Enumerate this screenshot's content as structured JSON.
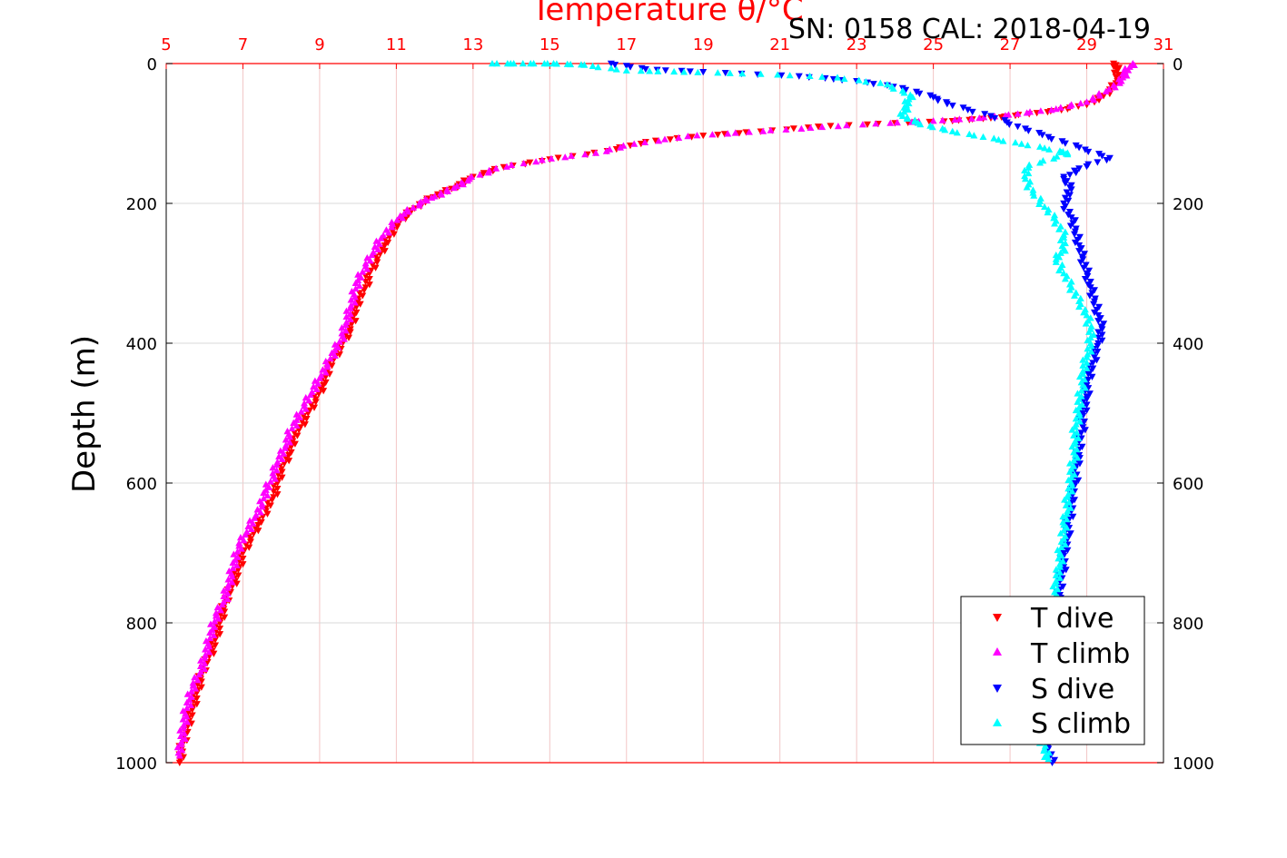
{
  "figure": {
    "title": "Temperature θ/°C",
    "annotation": "SN: 0158  CAL: 2018-04-19"
  },
  "colors": {
    "t_dive": "#ff0000",
    "t_climb": "#ff00ff",
    "s_dive": "#0000ff",
    "s_climb": "#00ffff",
    "top_axis": "#ff0000",
    "grid": "#d9d9d9",
    "top_grid": "#f2c6c6"
  },
  "chart_data": {
    "type": "scatter",
    "title": "Temperature θ/°C",
    "xlabel": "",
    "ylabel": "Depth (m)",
    "x_axis_top": {
      "range": [
        5,
        31
      ],
      "ticks": [
        "5",
        "7",
        "9",
        "11",
        "13",
        "15",
        "17",
        "19",
        "21",
        "23",
        "25",
        "27",
        "29",
        "31"
      ]
    },
    "y_axis": {
      "range": [
        0,
        1000
      ],
      "reversed": true,
      "ticks": [
        "0",
        "200",
        "400",
        "600",
        "800",
        "1000"
      ]
    },
    "grid": true,
    "legend_position": "bottom-right",
    "series": [
      {
        "name": "T dive",
        "marker": "triangle-down",
        "color": "#ff0000",
        "axis": "temperature",
        "points": [
          [
            29.7,
            0
          ],
          [
            29.8,
            10
          ],
          [
            29.8,
            25
          ],
          [
            29.6,
            40
          ],
          [
            29.2,
            55
          ],
          [
            28.5,
            65
          ],
          [
            27.5,
            72
          ],
          [
            26.5,
            78
          ],
          [
            25.5,
            82
          ],
          [
            24.0,
            85
          ],
          [
            22.0,
            90
          ],
          [
            20.5,
            97
          ],
          [
            19.0,
            103
          ],
          [
            17.5,
            112
          ],
          [
            16.5,
            125
          ],
          [
            15.0,
            137
          ],
          [
            13.8,
            148
          ],
          [
            13.0,
            162
          ],
          [
            12.6,
            175
          ],
          [
            12.2,
            185
          ],
          [
            11.8,
            195
          ],
          [
            11.4,
            210
          ],
          [
            11.1,
            225
          ],
          [
            10.9,
            240
          ],
          [
            10.7,
            260
          ],
          [
            10.5,
            280
          ],
          [
            10.3,
            300
          ],
          [
            10.2,
            320
          ],
          [
            10.0,
            340
          ],
          [
            9.9,
            360
          ],
          [
            9.8,
            380
          ],
          [
            9.6,
            400
          ],
          [
            9.4,
            420
          ],
          [
            9.2,
            440
          ],
          [
            9.1,
            460
          ],
          [
            8.9,
            480
          ],
          [
            8.7,
            500
          ],
          [
            8.5,
            520
          ],
          [
            8.3,
            540
          ],
          [
            8.2,
            560
          ],
          [
            8.0,
            580
          ],
          [
            7.9,
            600
          ],
          [
            7.8,
            620
          ],
          [
            7.6,
            640
          ],
          [
            7.4,
            660
          ],
          [
            7.2,
            680
          ],
          [
            7.0,
            700
          ],
          [
            6.9,
            720
          ],
          [
            6.8,
            740
          ],
          [
            6.6,
            760
          ],
          [
            6.5,
            780
          ],
          [
            6.4,
            800
          ],
          [
            6.3,
            820
          ],
          [
            6.2,
            840
          ],
          [
            6.0,
            860
          ],
          [
            5.9,
            880
          ],
          [
            5.8,
            900
          ],
          [
            5.7,
            920
          ],
          [
            5.6,
            940
          ],
          [
            5.5,
            960
          ],
          [
            5.4,
            980
          ],
          [
            5.35,
            1000
          ]
        ]
      },
      {
        "name": "T climb",
        "marker": "triangle-up",
        "color": "#ff00ff",
        "axis": "temperature",
        "points": [
          [
            30.2,
            0
          ],
          [
            30.0,
            12
          ],
          [
            29.9,
            25
          ],
          [
            29.5,
            40
          ],
          [
            29.0,
            55
          ],
          [
            28.2,
            65
          ],
          [
            27.2,
            72
          ],
          [
            26.2,
            78
          ],
          [
            25.0,
            82
          ],
          [
            23.5,
            86
          ],
          [
            21.8,
            92
          ],
          [
            20.2,
            98
          ],
          [
            18.6,
            104
          ],
          [
            17.2,
            115
          ],
          [
            16.2,
            128
          ],
          [
            14.8,
            138
          ],
          [
            13.6,
            150
          ],
          [
            12.9,
            165
          ],
          [
            12.5,
            178
          ],
          [
            12.0,
            190
          ],
          [
            11.6,
            200
          ],
          [
            11.2,
            215
          ],
          [
            10.9,
            230
          ],
          [
            10.6,
            250
          ],
          [
            10.4,
            270
          ],
          [
            10.2,
            290
          ],
          [
            10.0,
            310
          ],
          [
            9.9,
            330
          ],
          [
            9.8,
            350
          ],
          [
            9.7,
            370
          ],
          [
            9.6,
            390
          ],
          [
            9.4,
            410
          ],
          [
            9.2,
            430
          ],
          [
            9.0,
            450
          ],
          [
            8.8,
            470
          ],
          [
            8.6,
            490
          ],
          [
            8.4,
            510
          ],
          [
            8.2,
            530
          ],
          [
            8.1,
            550
          ],
          [
            7.9,
            570
          ],
          [
            7.8,
            590
          ],
          [
            7.6,
            610
          ],
          [
            7.5,
            630
          ],
          [
            7.3,
            650
          ],
          [
            7.1,
            670
          ],
          [
            6.9,
            690
          ],
          [
            6.8,
            710
          ],
          [
            6.7,
            730
          ],
          [
            6.6,
            750
          ],
          [
            6.5,
            770
          ],
          [
            6.3,
            790
          ],
          [
            6.2,
            810
          ],
          [
            6.1,
            830
          ],
          [
            6.0,
            850
          ],
          [
            5.9,
            870
          ],
          [
            5.7,
            890
          ],
          [
            5.6,
            910
          ],
          [
            5.5,
            930
          ],
          [
            5.45,
            950
          ],
          [
            5.4,
            970
          ],
          [
            5.35,
            990
          ]
        ]
      },
      {
        "name": "S dive",
        "marker": "triangle-down",
        "color": "#0000ff",
        "axis": "temperature",
        "points": [
          [
            16.6,
            0
          ],
          [
            17.5,
            8
          ],
          [
            19.0,
            12
          ],
          [
            21.5,
            18
          ],
          [
            23.0,
            25
          ],
          [
            24.2,
            35
          ],
          [
            25.0,
            48
          ],
          [
            25.5,
            60
          ],
          [
            26.5,
            75
          ],
          [
            27.2,
            90
          ],
          [
            28.0,
            105
          ],
          [
            28.8,
            120
          ],
          [
            29.6,
            135
          ],
          [
            28.8,
            150
          ],
          [
            28.4,
            165
          ],
          [
            28.6,
            180
          ],
          [
            28.4,
            200
          ],
          [
            28.6,
            220
          ],
          [
            28.7,
            240
          ],
          [
            28.8,
            260
          ],
          [
            28.9,
            280
          ],
          [
            29.0,
            300
          ],
          [
            29.1,
            320
          ],
          [
            29.2,
            340
          ],
          [
            29.3,
            360
          ],
          [
            29.4,
            380
          ],
          [
            29.3,
            400
          ],
          [
            29.2,
            420
          ],
          [
            29.1,
            440
          ],
          [
            29.0,
            460
          ],
          [
            29.0,
            480
          ],
          [
            28.9,
            500
          ],
          [
            28.9,
            520
          ],
          [
            28.8,
            540
          ],
          [
            28.8,
            560
          ],
          [
            28.7,
            580
          ],
          [
            28.7,
            600
          ],
          [
            28.6,
            620
          ],
          [
            28.6,
            640
          ],
          [
            28.5,
            660
          ],
          [
            28.5,
            680
          ],
          [
            28.4,
            700
          ],
          [
            28.4,
            720
          ],
          [
            28.3,
            740
          ],
          [
            28.3,
            760
          ],
          [
            28.2,
            780
          ],
          [
            28.2,
            800
          ],
          [
            28.1,
            820
          ],
          [
            28.1,
            840
          ],
          [
            28.0,
            860
          ],
          [
            28.0,
            880
          ],
          [
            27.9,
            900
          ],
          [
            27.9,
            920
          ],
          [
            27.9,
            940
          ],
          [
            27.9,
            960
          ],
          [
            28.0,
            980
          ],
          [
            28.1,
            1000
          ]
        ]
      },
      {
        "name": "S climb",
        "marker": "triangle-up",
        "color": "#00ffff",
        "axis": "temperature",
        "points": [
          [
            13.5,
            0
          ],
          [
            14.3,
            0
          ],
          [
            15.1,
            0
          ],
          [
            15.9,
            2
          ],
          [
            17.0,
            10
          ],
          [
            18.5,
            12
          ],
          [
            20.5,
            15
          ],
          [
            22.5,
            20
          ],
          [
            23.8,
            30
          ],
          [
            24.4,
            45
          ],
          [
            24.3,
            60
          ],
          [
            24.2,
            75
          ],
          [
            24.6,
            85
          ],
          [
            25.3,
            95
          ],
          [
            26.3,
            105
          ],
          [
            27.3,
            115
          ],
          [
            28.3,
            125
          ],
          [
            28.5,
            130
          ],
          [
            27.5,
            145
          ],
          [
            27.4,
            165
          ],
          [
            27.6,
            185
          ],
          [
            27.9,
            205
          ],
          [
            28.2,
            225
          ],
          [
            28.4,
            245
          ],
          [
            28.4,
            265
          ],
          [
            28.2,
            280
          ],
          [
            28.4,
            300
          ],
          [
            28.6,
            320
          ],
          [
            28.8,
            340
          ],
          [
            29.0,
            360
          ],
          [
            29.1,
            380
          ],
          [
            29.1,
            400
          ],
          [
            29.0,
            420
          ],
          [
            28.9,
            440
          ],
          [
            28.9,
            460
          ],
          [
            28.8,
            480
          ],
          [
            28.8,
            500
          ],
          [
            28.7,
            520
          ],
          [
            28.7,
            540
          ],
          [
            28.7,
            560
          ],
          [
            28.6,
            580
          ],
          [
            28.6,
            600
          ],
          [
            28.5,
            620
          ],
          [
            28.5,
            640
          ],
          [
            28.4,
            660
          ],
          [
            28.4,
            680
          ],
          [
            28.3,
            700
          ],
          [
            28.3,
            720
          ],
          [
            28.2,
            740
          ],
          [
            28.2,
            760
          ],
          [
            28.1,
            780
          ],
          [
            28.1,
            800
          ],
          [
            28.0,
            820
          ],
          [
            28.0,
            840
          ],
          [
            27.9,
            860
          ],
          [
            27.9,
            880
          ],
          [
            27.8,
            900
          ],
          [
            27.8,
            920
          ],
          [
            27.8,
            940
          ],
          [
            27.8,
            960
          ],
          [
            27.9,
            980
          ],
          [
            28.0,
            995
          ]
        ]
      }
    ]
  }
}
